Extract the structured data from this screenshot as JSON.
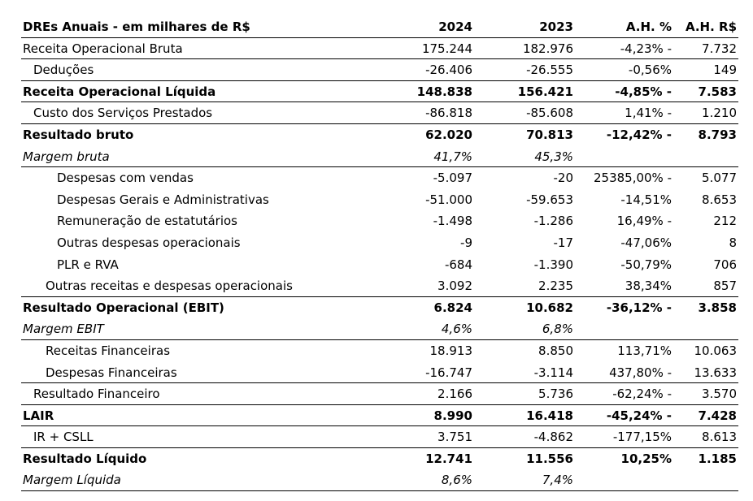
{
  "header": {
    "label": "DREs Anuais - em milhares de R$",
    "col_2024": "2024",
    "col_2023": "2023",
    "col_ahp": "A.H. %",
    "col_ahr": "A.H. R$"
  },
  "rows": [
    {
      "label": "Receita Operacional Bruta",
      "v2024": "175.244",
      "v2023": "182.976",
      "ahp": "-4,23% -",
      "ahr": "7.732"
    },
    {
      "label": "Deduções",
      "v2024": "-26.406",
      "v2023": "-26.555",
      "ahp": "-0,56%",
      "ahr": "149"
    },
    {
      "label": "Receita Operacional Líquida",
      "v2024": "148.838",
      "v2023": "156.421",
      "ahp": "-4,85% -",
      "ahr": "7.583"
    },
    {
      "label": "Custo dos Serviços Prestados",
      "v2024": "-86.818",
      "v2023": "-85.608",
      "ahp": "1,41% -",
      "ahr": "1.210"
    },
    {
      "label": "Resultado bruto",
      "v2024": "62.020",
      "v2023": "70.813",
      "ahp": "-12,42% -",
      "ahr": "8.793"
    },
    {
      "label": "Margem bruta",
      "v2024": "41,7%",
      "v2023": "45,3%",
      "ahp": "",
      "ahr": ""
    },
    {
      "label": "Despesas com vendas",
      "v2024": "-5.097",
      "v2023": "-20",
      "ahp": "25385,00% -",
      "ahr": "5.077"
    },
    {
      "label": "Despesas Gerais e Administrativas",
      "v2024": "-51.000",
      "v2023": "-59.653",
      "ahp": "-14,51%",
      "ahr": "8.653"
    },
    {
      "label": "Remuneração de estatutários",
      "v2024": "-1.498",
      "v2023": "-1.286",
      "ahp": "16,49% -",
      "ahr": "212"
    },
    {
      "label": "Outras despesas operacionais",
      "v2024": "-9",
      "v2023": "-17",
      "ahp": "-47,06%",
      "ahr": "8"
    },
    {
      "label": "PLR e RVA",
      "v2024": "-684",
      "v2023": "-1.390",
      "ahp": "-50,79%",
      "ahr": "706"
    },
    {
      "label": "Outras receitas e despesas operacionais",
      "v2024": "3.092",
      "v2023": "2.235",
      "ahp": "38,34%",
      "ahr": "857"
    },
    {
      "label": "Resultado Operacional (EBIT)",
      "v2024": "6.824",
      "v2023": "10.682",
      "ahp": "-36,12% -",
      "ahr": "3.858"
    },
    {
      "label": "Margem EBIT",
      "v2024": "4,6%",
      "v2023": "6,8%",
      "ahp": "",
      "ahr": ""
    },
    {
      "label": "Receitas Financeiras",
      "v2024": "18.913",
      "v2023": "8.850",
      "ahp": "113,71%",
      "ahr": "10.063"
    },
    {
      "label": "Despesas Financeiras",
      "v2024": "-16.747",
      "v2023": "-3.114",
      "ahp": "437,80% -",
      "ahr": "13.633"
    },
    {
      "label": "Resultado Financeiro",
      "v2024": "2.166",
      "v2023": "5.736",
      "ahp": "-62,24% -",
      "ahr": "3.570"
    },
    {
      "label": "LAIR",
      "v2024": "8.990",
      "v2023": "16.418",
      "ahp": "-45,24% -",
      "ahr": "7.428"
    },
    {
      "label": "IR + CSLL",
      "v2024": "3.751",
      "v2023": "-4.862",
      "ahp": "-177,15%",
      "ahr": "8.613"
    },
    {
      "label": "Resultado Líquido",
      "v2024": "12.741",
      "v2023": "11.556",
      "ahp": "10,25%",
      "ahr": "1.185"
    },
    {
      "label": "Margem Líquida",
      "v2024": "8,6%",
      "v2023": "7,4%",
      "ahp": "",
      "ahr": ""
    }
  ]
}
